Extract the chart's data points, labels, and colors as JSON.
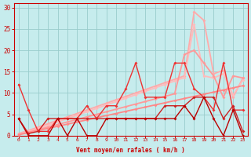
{
  "xlabel": "Vent moyen/en rafales ( km/h )",
  "xlim": [
    -0.5,
    23.5
  ],
  "ylim": [
    0,
    31
  ],
  "xticks": [
    0,
    1,
    2,
    3,
    4,
    5,
    6,
    7,
    8,
    9,
    10,
    11,
    12,
    13,
    14,
    15,
    16,
    17,
    18,
    19,
    20,
    21,
    22,
    23
  ],
  "yticks": [
    0,
    5,
    10,
    15,
    20,
    25,
    30
  ],
  "background_color": "#c6eced",
  "grid_color": "#99cccc",
  "series": [
    {
      "y": [
        0.5,
        1.2,
        2.0,
        2.8,
        3.6,
        4.4,
        5.2,
        6.0,
        6.8,
        7.6,
        8.4,
        9.2,
        10.0,
        10.8,
        11.6,
        12.4,
        13.2,
        14.0,
        29.0,
        27.0,
        14.5,
        15.3,
        9.0,
        13.5
      ],
      "color": "#ffaaaa",
      "lw": 1.3,
      "marker": "D",
      "ms": 2.0,
      "zorder": 2
    },
    {
      "y": [
        0.4,
        1.0,
        1.7,
        2.4,
        3.2,
        4.0,
        4.8,
        5.6,
        6.4,
        7.2,
        8.0,
        8.8,
        9.6,
        10.4,
        11.2,
        12.0,
        12.8,
        13.6,
        26.0,
        14.0,
        13.5,
        14.5,
        9.5,
        13.0
      ],
      "color": "#ffbbbb",
      "lw": 1.3,
      "marker": "D",
      "ms": 2.0,
      "zorder": 2
    },
    {
      "y": [
        0.3,
        0.8,
        1.4,
        2.0,
        2.6,
        3.2,
        3.8,
        4.4,
        5.0,
        5.6,
        6.2,
        6.8,
        7.4,
        8.0,
        8.6,
        9.2,
        9.8,
        19.0,
        20.0,
        17.0,
        14.0,
        9.0,
        14.0,
        13.5
      ],
      "color": "#ff9999",
      "lw": 1.3,
      "marker": "D",
      "ms": 2.0,
      "zorder": 3
    },
    {
      "y": [
        0.2,
        0.7,
        1.2,
        1.7,
        2.2,
        2.7,
        3.2,
        3.7,
        4.2,
        4.7,
        5.2,
        5.7,
        6.2,
        6.7,
        7.2,
        7.7,
        8.2,
        8.7,
        9.2,
        9.7,
        10.2,
        10.7,
        11.2,
        11.7
      ],
      "color": "#ff8888",
      "lw": 1.3,
      "marker": "D",
      "ms": 2.0,
      "zorder": 3
    },
    {
      "y": [
        12.0,
        6.0,
        1.0,
        1.0,
        4.0,
        4.0,
        4.0,
        7.0,
        4.0,
        7.0,
        7.0,
        11.0,
        17.0,
        9.0,
        9.0,
        9.0,
        17.0,
        17.0,
        11.0,
        9.0,
        6.0,
        17.0,
        6.0,
        6.0
      ],
      "color": "#ee3333",
      "lw": 1.0,
      "marker": "D",
      "ms": 2.0,
      "zorder": 5
    },
    {
      "y": [
        4.0,
        0.5,
        1.0,
        4.0,
        4.0,
        4.0,
        4.0,
        4.0,
        4.0,
        4.0,
        4.0,
        4.0,
        4.0,
        4.0,
        4.0,
        7.0,
        7.0,
        7.0,
        9.0,
        9.0,
        9.0,
        4.0,
        7.0,
        1.0
      ],
      "color": "#cc2222",
      "lw": 1.0,
      "marker": "D",
      "ms": 2.0,
      "zorder": 5
    },
    {
      "y": [
        4.0,
        0.0,
        0.0,
        0.0,
        4.0,
        0.0,
        4.0,
        0.0,
        0.0,
        4.0,
        4.0,
        4.0,
        4.0,
        4.0,
        4.0,
        4.0,
        4.0,
        7.0,
        4.0,
        9.0,
        4.0,
        0.0,
        6.0,
        0.0
      ],
      "color": "#bb0000",
      "lw": 1.0,
      "marker": "D",
      "ms": 2.0,
      "zorder": 6
    }
  ]
}
